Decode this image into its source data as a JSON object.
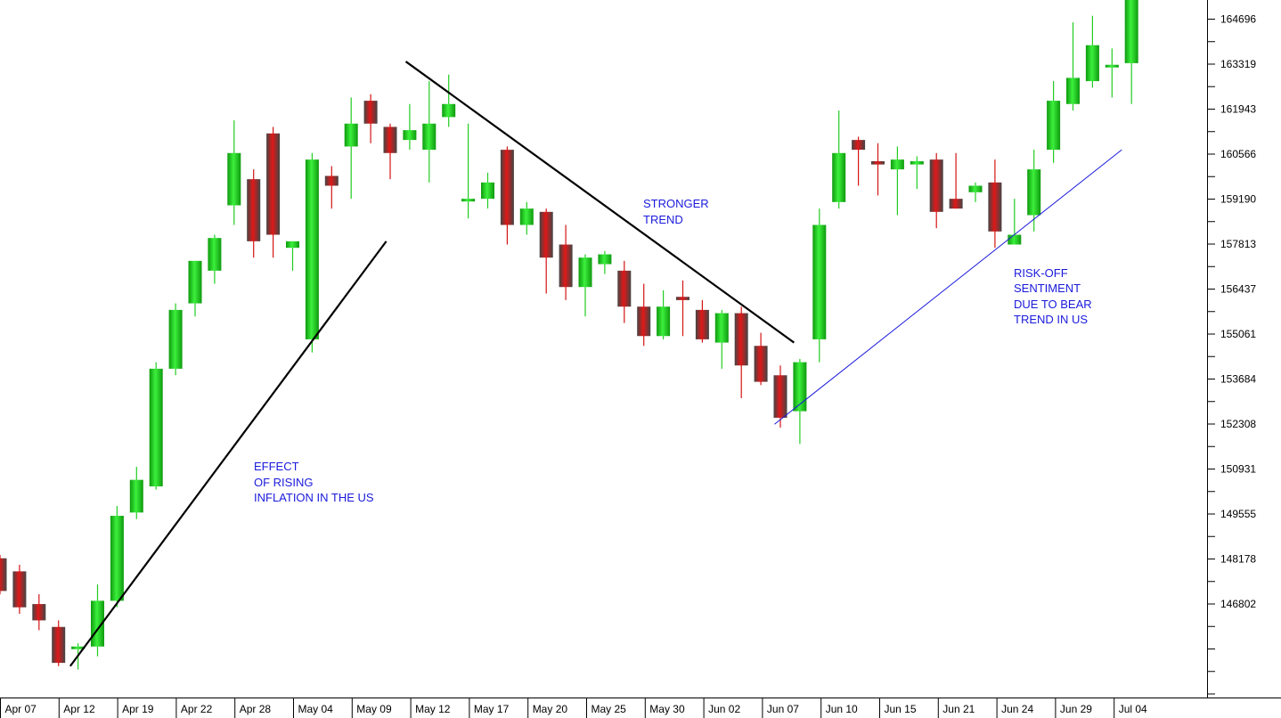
{
  "chart_data": {
    "type": "candlestick",
    "title": "",
    "xlabel": "",
    "ylabel": "",
    "ylim": [
      144600,
      165900
    ],
    "x_tick_labels": [
      "Apr 07",
      "Apr 12",
      "Apr 19",
      "Apr 22",
      "Apr 28",
      "May 04",
      "May 09",
      "May 12",
      "May 17",
      "May 20",
      "May 25",
      "May 30",
      "Jun 02",
      "Jun 07",
      "Jun 10",
      "Jun 15",
      "Jun 21",
      "Jun 24",
      "Jun 29",
      "Jul 04"
    ],
    "y_tick_labels": [
      "164696",
      "163319",
      "161943",
      "160566",
      "159190",
      "157813",
      "156437",
      "155061",
      "153684",
      "152308",
      "150931",
      "149555",
      "148178",
      "146802"
    ],
    "colors": {
      "up": "#22cc22",
      "down": "#d41414",
      "trend": "#000000",
      "support": "#1a1adc",
      "annotation": "#1a1adc"
    },
    "candles": [
      {
        "o": 148200,
        "h": 148300,
        "l": 147100,
        "c": 147200
      },
      {
        "o": 147800,
        "h": 148000,
        "l": 146500,
        "c": 146700
      },
      {
        "o": 146800,
        "h": 147100,
        "l": 146000,
        "c": 146300
      },
      {
        "o": 146100,
        "h": 146300,
        "l": 144900,
        "c": 145000
      },
      {
        "o": 145450,
        "h": 145600,
        "l": 144800,
        "c": 145500
      },
      {
        "o": 145500,
        "h": 147400,
        "l": 145200,
        "c": 146900
      },
      {
        "o": 146900,
        "h": 149800,
        "l": 146700,
        "c": 149500
      },
      {
        "o": 149600,
        "h": 151000,
        "l": 149400,
        "c": 150600
      },
      {
        "o": 150400,
        "h": 154200,
        "l": 150300,
        "c": 154000
      },
      {
        "o": 154000,
        "h": 156000,
        "l": 153800,
        "c": 155800
      },
      {
        "o": 156000,
        "h": 157300,
        "l": 155600,
        "c": 157300
      },
      {
        "o": 157000,
        "h": 158100,
        "l": 156600,
        "c": 158000
      },
      {
        "o": 159000,
        "h": 161600,
        "l": 158400,
        "c": 160600
      },
      {
        "o": 159800,
        "h": 160100,
        "l": 157400,
        "c": 157900
      },
      {
        "o": 161200,
        "h": 161400,
        "l": 157400,
        "c": 158100
      },
      {
        "o": 157700,
        "h": 157900,
        "l": 157000,
        "c": 157900
      },
      {
        "o": 154900,
        "h": 160600,
        "l": 154500,
        "c": 160400
      },
      {
        "o": 159900,
        "h": 160200,
        "l": 158900,
        "c": 159600
      },
      {
        "o": 160800,
        "h": 162300,
        "l": 159200,
        "c": 161500
      },
      {
        "o": 162200,
        "h": 162400,
        "l": 160900,
        "c": 161500
      },
      {
        "o": 161400,
        "h": 161500,
        "l": 159800,
        "c": 160600
      },
      {
        "o": 161000,
        "h": 162100,
        "l": 160700,
        "c": 161300
      },
      {
        "o": 160700,
        "h": 162800,
        "l": 159700,
        "c": 161500
      },
      {
        "o": 161700,
        "h": 163000,
        "l": 161400,
        "c": 162100
      },
      {
        "o": 159200,
        "h": 161500,
        "l": 158600,
        "c": 159200
      },
      {
        "o": 159200,
        "h": 160000,
        "l": 158900,
        "c": 159700
      },
      {
        "o": 160700,
        "h": 160800,
        "l": 157800,
        "c": 158400
      },
      {
        "o": 158400,
        "h": 159100,
        "l": 158100,
        "c": 158900
      },
      {
        "o": 158800,
        "h": 158900,
        "l": 156300,
        "c": 157400
      },
      {
        "o": 157800,
        "h": 158400,
        "l": 156100,
        "c": 156500
      },
      {
        "o": 156500,
        "h": 157500,
        "l": 155600,
        "c": 157400
      },
      {
        "o": 157200,
        "h": 157600,
        "l": 156900,
        "c": 157500
      },
      {
        "o": 157000,
        "h": 157300,
        "l": 155400,
        "c": 155900
      },
      {
        "o": 155900,
        "h": 156600,
        "l": 154700,
        "c": 155000
      },
      {
        "o": 155000,
        "h": 156400,
        "l": 154900,
        "c": 155900
      },
      {
        "o": 156200,
        "h": 156700,
        "l": 155000,
        "c": 156100
      },
      {
        "o": 155800,
        "h": 156100,
        "l": 154800,
        "c": 154900
      },
      {
        "o": 154800,
        "h": 155800,
        "l": 154000,
        "c": 155700
      },
      {
        "o": 155700,
        "h": 155900,
        "l": 153100,
        "c": 154100
      },
      {
        "o": 154700,
        "h": 155100,
        "l": 153500,
        "c": 153600
      },
      {
        "o": 153800,
        "h": 154100,
        "l": 152200,
        "c": 152500
      },
      {
        "o": 152700,
        "h": 154300,
        "l": 151700,
        "c": 154200
      },
      {
        "o": 154900,
        "h": 158900,
        "l": 154200,
        "c": 158400
      },
      {
        "o": 159100,
        "h": 161900,
        "l": 158900,
        "c": 160600
      },
      {
        "o": 161000,
        "h": 161100,
        "l": 159600,
        "c": 160700
      },
      {
        "o": 160350,
        "h": 160900,
        "l": 159300,
        "c": 160250
      },
      {
        "o": 160100,
        "h": 160800,
        "l": 158700,
        "c": 160400
      },
      {
        "o": 160250,
        "h": 160500,
        "l": 159500,
        "c": 160350
      },
      {
        "o": 160400,
        "h": 160600,
        "l": 158300,
        "c": 158800
      },
      {
        "o": 159200,
        "h": 160600,
        "l": 158900,
        "c": 158900
      },
      {
        "o": 159400,
        "h": 159700,
        "l": 159100,
        "c": 159600
      },
      {
        "o": 159700,
        "h": 160400,
        "l": 157700,
        "c": 158200
      },
      {
        "o": 157800,
        "h": 159200,
        "l": 157800,
        "c": 158100
      },
      {
        "o": 158700,
        "h": 160700,
        "l": 158200,
        "c": 160100
      },
      {
        "o": 160700,
        "h": 162800,
        "l": 160300,
        "c": 162200
      },
      {
        "o": 162100,
        "h": 164600,
        "l": 161900,
        "c": 162900
      },
      {
        "o": 162800,
        "h": 164800,
        "l": 162600,
        "c": 163900
      },
      {
        "o": 163250,
        "h": 163800,
        "l": 162300,
        "c": 163300
      },
      {
        "o": 163350,
        "h": 165900,
        "l": 162100,
        "c": 165600
      }
    ],
    "trendlines": [
      {
        "name": "rising",
        "x0": 3.6,
        "y0": 144900,
        "x1": 19.8,
        "y1": 157900,
        "color": "#000000"
      },
      {
        "name": "falling",
        "x0": 20.8,
        "y0": 163400,
        "x1": 40.7,
        "y1": 154800,
        "color": "#000000"
      },
      {
        "name": "support",
        "x0": 39.7,
        "y0": 152300,
        "x1": 57.5,
        "y1": 160700,
        "color": "#1a1adc"
      }
    ],
    "annotations": [
      {
        "lines": [
          "EFFECT",
          "OF RISING",
          "INFLATION IN THE US"
        ]
      },
      {
        "lines": [
          "STRONGER",
          "TREND"
        ]
      },
      {
        "lines": [
          "RISK-OFF",
          "SENTIMENT",
          "DUE TO BEAR",
          "TREND IN US"
        ]
      }
    ]
  }
}
